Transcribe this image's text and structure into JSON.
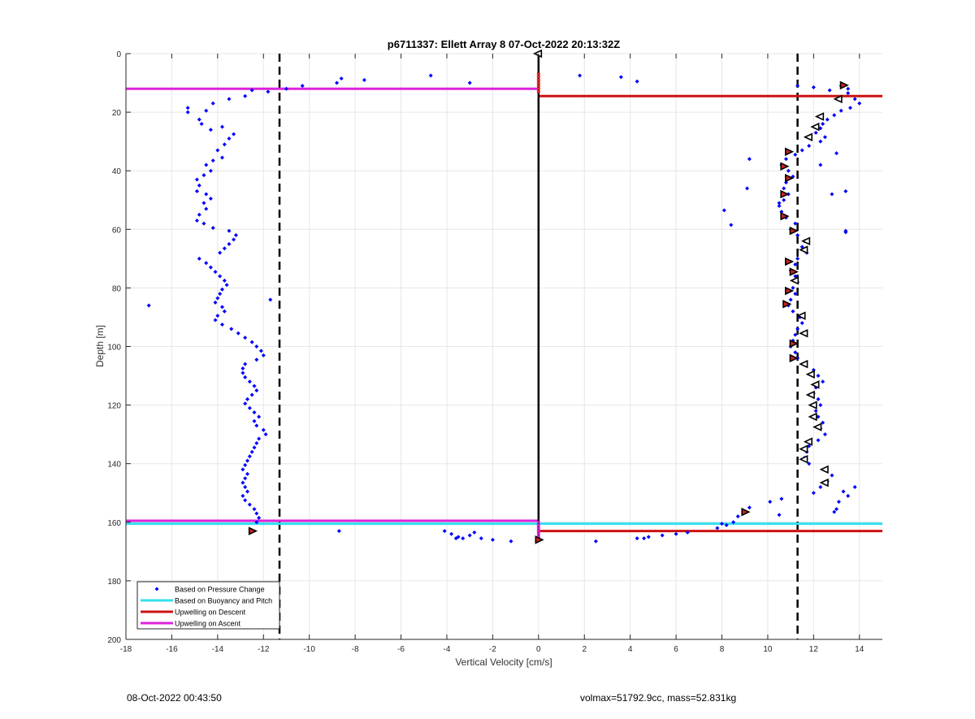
{
  "chart_data": {
    "type": "scatter",
    "title": "p6711337: Ellett Array 8 07-Oct-2022 20:13:32Z",
    "xlabel": "Vertical Velocity [cm/s]",
    "ylabel": "Depth [m]",
    "xlim": [
      -18,
      15
    ],
    "ylim": [
      0,
      200
    ],
    "y_reversed": true,
    "grid": true,
    "xticks": [
      -18,
      -16,
      -14,
      -12,
      -10,
      -8,
      -6,
      -4,
      -2,
      0,
      2,
      4,
      6,
      8,
      10,
      12,
      14
    ],
    "yticks": [
      0,
      20,
      40,
      60,
      80,
      100,
      120,
      140,
      160,
      180,
      200
    ],
    "xtick_labels": [
      "-18",
      "-16",
      "-14",
      "-12",
      "-10",
      "-8",
      "-6",
      "-4",
      "-2",
      "0",
      "2",
      "4",
      "6",
      "8",
      "10",
      "12",
      "14"
    ],
    "ytick_labels": [
      "0",
      "20",
      "40",
      "60",
      "80",
      "100",
      "120",
      "140",
      "160",
      "180",
      "200"
    ],
    "legend_position": "bottom-left",
    "legend": [
      {
        "label": "Based on Pressure Change",
        "color": "#0000ff",
        "style": "dot"
      },
      {
        "label": "Based on Buoyancy and Pitch",
        "color": "#33e0f0",
        "style": "line"
      },
      {
        "label": "Upwelling on Descent",
        "color": "#cc1111",
        "style": "line"
      },
      {
        "label": "Upwelling on Ascent",
        "color": "#dd22dd",
        "style": "line"
      }
    ],
    "vlines": [
      {
        "x": -11.3,
        "style": "dashed",
        "color": "#000000"
      },
      {
        "x": 11.3,
        "style": "dashed",
        "color": "#000000"
      }
    ],
    "center_line": {
      "x": 0,
      "y_range": [
        0,
        166
      ],
      "color": "#000000"
    },
    "series_pressure_change": {
      "color": "#0000ff",
      "ascent": [
        [
          -12.5,
          12.5
        ],
        [
          -12.8,
          14.5
        ],
        [
          -13.5,
          15.5
        ],
        [
          -14.2,
          17.0
        ],
        [
          -15.3,
          18.5
        ],
        [
          -15.3,
          20.0
        ],
        [
          -14.5,
          19.5
        ],
        [
          -14.8,
          22.5
        ],
        [
          -14.7,
          24.0
        ],
        [
          -14.3,
          26.0
        ],
        [
          -13.8,
          25.0
        ],
        [
          -13.3,
          27.5
        ],
        [
          -13.5,
          29.0
        ],
        [
          -13.7,
          31.0
        ],
        [
          -14.0,
          33.0
        ],
        [
          -13.8,
          35.5
        ],
        [
          -14.2,
          36.5
        ],
        [
          -14.5,
          38.0
        ],
        [
          -14.3,
          40.0
        ],
        [
          -14.6,
          41.5
        ],
        [
          -14.9,
          43.0
        ],
        [
          -14.8,
          45.0
        ],
        [
          -14.9,
          47.0
        ],
        [
          -14.5,
          48.0
        ],
        [
          -14.3,
          49.5
        ],
        [
          -14.6,
          51.0
        ],
        [
          -14.5,
          53.0
        ],
        [
          -14.8,
          55.0
        ],
        [
          -14.9,
          57.0
        ],
        [
          -14.6,
          58.0
        ],
        [
          -14.2,
          59.5
        ],
        [
          -13.5,
          60.5
        ],
        [
          -13.2,
          62.0
        ],
        [
          -13.3,
          63.5
        ],
        [
          -13.5,
          65.0
        ],
        [
          -13.7,
          66.5
        ],
        [
          -13.9,
          68.0
        ],
        [
          -14.8,
          70.0
        ],
        [
          -14.5,
          71.5
        ],
        [
          -14.3,
          73.0
        ],
        [
          -14.1,
          74.5
        ],
        [
          -13.9,
          76.0
        ],
        [
          -13.7,
          77.5
        ],
        [
          -13.6,
          79.0
        ],
        [
          -13.8,
          80.5
        ],
        [
          -13.9,
          82.0
        ],
        [
          -14.0,
          83.5
        ],
        [
          -14.1,
          85.0
        ],
        [
          -13.8,
          86.5
        ],
        [
          -13.7,
          88.0
        ],
        [
          -14.0,
          89.5
        ],
        [
          -14.1,
          91.0
        ],
        [
          -13.8,
          92.5
        ],
        [
          -13.4,
          94.0
        ],
        [
          -13.1,
          95.5
        ],
        [
          -12.8,
          97.0
        ],
        [
          -12.5,
          98.5
        ],
        [
          -12.3,
          100.0
        ],
        [
          -12.1,
          101.5
        ],
        [
          -12.0,
          103.0
        ],
        [
          -12.3,
          104.5
        ],
        [
          -12.8,
          106.0
        ],
        [
          -12.9,
          107.5
        ],
        [
          -12.9,
          109.0
        ],
        [
          -12.8,
          110.5
        ],
        [
          -12.6,
          112.0
        ],
        [
          -12.4,
          113.5
        ],
        [
          -12.3,
          115.0
        ],
        [
          -12.5,
          116.5
        ],
        [
          -12.7,
          118.0
        ],
        [
          -12.8,
          119.5
        ],
        [
          -12.6,
          121.0
        ],
        [
          -12.4,
          122.5
        ],
        [
          -12.2,
          124.0
        ],
        [
          -12.4,
          125.5
        ],
        [
          -12.3,
          127.0
        ],
        [
          -12.0,
          128.5
        ],
        [
          -11.9,
          130.0
        ],
        [
          -12.2,
          131.5
        ],
        [
          -12.3,
          133.0
        ],
        [
          -12.4,
          134.5
        ],
        [
          -12.5,
          136.0
        ],
        [
          -12.6,
          137.5
        ],
        [
          -12.7,
          139.0
        ],
        [
          -12.8,
          140.5
        ],
        [
          -12.9,
          142.0
        ],
        [
          -12.7,
          143.5
        ],
        [
          -12.8,
          145.0
        ],
        [
          -12.9,
          146.5
        ],
        [
          -12.8,
          148.0
        ],
        [
          -12.7,
          149.5
        ],
        [
          -12.9,
          151.0
        ],
        [
          -12.8,
          152.5
        ],
        [
          -12.6,
          154.0
        ],
        [
          -12.4,
          155.5
        ],
        [
          -12.3,
          157.0
        ],
        [
          -12.2,
          158.5
        ],
        [
          -12.3,
          160.0
        ],
        [
          -17.0,
          86.0
        ],
        [
          -11.7,
          84.0
        ],
        [
          -11.8,
          13.0
        ],
        [
          -11.0,
          12.0
        ],
        [
          -10.3,
          11.0
        ],
        [
          -8.8,
          10.0
        ],
        [
          -8.6,
          8.5
        ],
        [
          -7.6,
          9.0
        ],
        [
          -4.7,
          7.5
        ],
        [
          -3.0,
          10.0
        ],
        [
          -8.7,
          163.0
        ],
        [
          -4.1,
          163.0
        ],
        [
          -3.8,
          164.0
        ],
        [
          -3.5,
          165.0
        ],
        [
          -3.3,
          165.5
        ],
        [
          -3.0,
          164.5
        ],
        [
          -2.8,
          163.5
        ],
        [
          -2.5,
          165.5
        ],
        [
          -2.0,
          166.0
        ],
        [
          -1.2,
          166.5
        ],
        [
          -3.6,
          165.5
        ]
      ],
      "descent": [
        [
          1.8,
          7.5
        ],
        [
          3.6,
          8.0
        ],
        [
          4.3,
          9.5
        ],
        [
          11.3,
          11.0
        ],
        [
          12.0,
          11.5
        ],
        [
          12.7,
          12.5
        ],
        [
          13.2,
          11.0
        ],
        [
          13.5,
          12.0
        ],
        [
          13.5,
          13.5
        ],
        [
          13.8,
          15.5
        ],
        [
          14.0,
          17.0
        ],
        [
          13.6,
          18.5
        ],
        [
          13.2,
          19.5
        ],
        [
          12.9,
          21.0
        ],
        [
          12.6,
          22.5
        ],
        [
          12.4,
          24.0
        ],
        [
          12.3,
          25.5
        ],
        [
          12.1,
          27.0
        ],
        [
          12.5,
          28.5
        ],
        [
          12.3,
          30.0
        ],
        [
          11.8,
          31.5
        ],
        [
          11.5,
          33.0
        ],
        [
          11.2,
          34.5
        ],
        [
          10.8,
          36.0
        ],
        [
          10.6,
          38.0
        ],
        [
          10.9,
          40.0
        ],
        [
          11.1,
          42.0
        ],
        [
          10.8,
          44.0
        ],
        [
          10.7,
          46.0
        ],
        [
          10.9,
          48.0
        ],
        [
          10.7,
          50.0
        ],
        [
          10.5,
          52.0
        ],
        [
          10.6,
          54.0
        ],
        [
          10.8,
          56.0
        ],
        [
          11.2,
          58.0
        ],
        [
          11.0,
          60.0
        ],
        [
          11.3,
          62.0
        ],
        [
          11.6,
          64.0
        ],
        [
          11.5,
          66.0
        ],
        [
          11.7,
          68.0
        ],
        [
          11.3,
          70.0
        ],
        [
          11.2,
          72.0
        ],
        [
          11.0,
          74.0
        ],
        [
          11.2,
          76.0
        ],
        [
          11.3,
          78.0
        ],
        [
          11.1,
          80.0
        ],
        [
          11.2,
          82.0
        ],
        [
          11.0,
          84.0
        ],
        [
          10.9,
          86.0
        ],
        [
          11.1,
          88.0
        ],
        [
          11.4,
          90.0
        ],
        [
          11.5,
          92.0
        ],
        [
          11.3,
          94.0
        ],
        [
          11.2,
          96.0
        ],
        [
          11.1,
          98.0
        ],
        [
          11.0,
          100.0
        ],
        [
          11.2,
          102.0
        ],
        [
          11.3,
          104.0
        ],
        [
          11.6,
          106.0
        ],
        [
          12.0,
          108.0
        ],
        [
          12.2,
          110.0
        ],
        [
          12.4,
          112.0
        ],
        [
          12.1,
          114.0
        ],
        [
          12.0,
          116.0
        ],
        [
          12.2,
          118.0
        ],
        [
          12.3,
          120.0
        ],
        [
          12.1,
          122.0
        ],
        [
          12.2,
          124.0
        ],
        [
          12.4,
          126.0
        ],
        [
          12.3,
          128.0
        ],
        [
          12.5,
          130.0
        ],
        [
          12.2,
          132.0
        ],
        [
          11.8,
          134.0
        ],
        [
          11.7,
          136.0
        ],
        [
          11.6,
          138.0
        ],
        [
          11.8,
          140.0
        ],
        [
          12.5,
          142.0
        ],
        [
          12.8,
          144.0
        ],
        [
          12.6,
          146.0
        ],
        [
          12.3,
          148.0
        ],
        [
          12.0,
          150.0
        ],
        [
          10.6,
          152.0
        ],
        [
          10.1,
          153.0
        ],
        [
          9.2,
          155.0
        ],
        [
          8.7,
          158.0
        ],
        [
          8.5,
          160.0
        ],
        [
          8.2,
          161.0
        ],
        [
          8.0,
          160.5
        ],
        [
          7.8,
          162.0
        ],
        [
          6.5,
          163.5
        ],
        [
          6.0,
          164.0
        ],
        [
          5.4,
          164.5
        ],
        [
          4.8,
          165.0
        ],
        [
          4.6,
          165.5
        ],
        [
          4.3,
          165.5
        ],
        [
          2.5,
          166.5
        ],
        [
          9.2,
          36.0
        ],
        [
          8.1,
          53.5
        ],
        [
          8.4,
          58.5
        ],
        [
          10.5,
          51.0
        ],
        [
          9.1,
          46.0
        ],
        [
          12.3,
          38.0
        ],
        [
          13.0,
          34.0
        ],
        [
          12.8,
          48.0
        ],
        [
          13.4,
          60.5
        ],
        [
          13.4,
          61.0
        ],
        [
          13.4,
          47.0
        ],
        [
          13.8,
          148.0
        ],
        [
          13.5,
          151.0
        ],
        [
          13.1,
          153.0
        ],
        [
          13.0,
          155.5
        ],
        [
          13.3,
          149.5
        ],
        [
          10.5,
          157.5
        ],
        [
          12.9,
          156.5
        ]
      ]
    },
    "series_buoyancy_pitch": {
      "color": "#33e0f0",
      "y": 160.5,
      "x_range": [
        -18,
        15
      ]
    },
    "series_descent_upwelling": [
      {
        "y": 14.5,
        "x_range": [
          0,
          15
        ],
        "color": "#cc1111"
      },
      {
        "y": 163.0,
        "x_range": [
          0,
          15
        ],
        "color": "#cc1111"
      }
    ],
    "series_ascent_upwelling": [
      {
        "y": 12.0,
        "x_range": [
          -18,
          0
        ],
        "color": "#dd22dd"
      },
      {
        "y": 159.5,
        "x_range": [
          -18,
          0
        ],
        "color": "#dd22dd"
      }
    ],
    "markers_filled": {
      "color": "#cc2222",
      "points": [
        [
          13.3,
          10.8
        ],
        [
          10.9,
          33.5
        ],
        [
          10.7,
          38.5
        ],
        [
          10.9,
          42.5
        ],
        [
          10.7,
          48.0
        ],
        [
          10.7,
          55.5
        ],
        [
          11.1,
          60.5
        ],
        [
          10.9,
          71.0
        ],
        [
          11.1,
          74.5
        ],
        [
          10.9,
          81.0
        ],
        [
          10.8,
          85.5
        ],
        [
          11.1,
          99.0
        ],
        [
          11.1,
          104.0
        ],
        [
          9.0,
          156.5
        ],
        [
          -12.5,
          163.0
        ],
        [
          0.0,
          166.0
        ]
      ]
    },
    "markers_open": {
      "points": [
        [
          13.1,
          15.5
        ],
        [
          12.3,
          21.5
        ],
        [
          12.1,
          25.0
        ],
        [
          11.8,
          28.5
        ],
        [
          11.7,
          64.0
        ],
        [
          11.6,
          67.0
        ],
        [
          11.2,
          77.5
        ],
        [
          11.5,
          89.5
        ],
        [
          11.6,
          95.5
        ],
        [
          11.6,
          106.0
        ],
        [
          11.9,
          109.5
        ],
        [
          12.1,
          113.0
        ],
        [
          11.9,
          116.5
        ],
        [
          12.0,
          120.0
        ],
        [
          12.0,
          124.0
        ],
        [
          12.2,
          127.5
        ],
        [
          11.8,
          132.5
        ],
        [
          11.6,
          135.0
        ],
        [
          11.6,
          138.5
        ],
        [
          12.5,
          142.0
        ],
        [
          12.5,
          146.5
        ],
        [
          0.0,
          0.0
        ]
      ]
    }
  },
  "footer": {
    "left": "08-Oct-2022 00:43:50",
    "right": "volmax=51792.9cc, mass=52.831kg"
  }
}
